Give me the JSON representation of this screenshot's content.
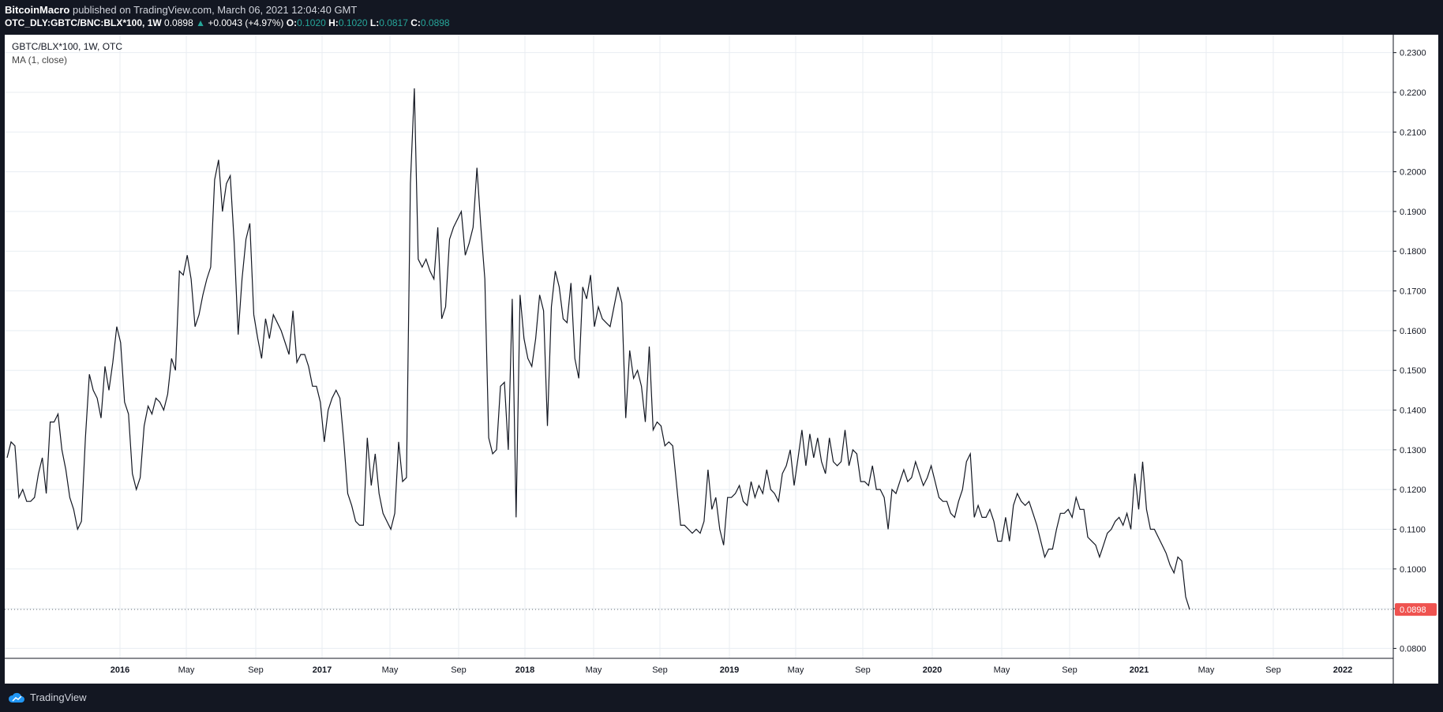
{
  "header": {
    "author": "BitcoinMacro",
    "published": "published on TradingView.com, March 06, 2021 12:04:40 GMT",
    "symbol": "OTC_DLY:GBTC/BNC:BLX*100, 1W",
    "last": "0.0898",
    "change": "+0.0043 (+4.97%)",
    "o_label": "O:",
    "o": "0.1020",
    "h_label": "H:",
    "h": "0.1020",
    "l_label": "L:",
    "l": "0.0817",
    "c_label": "C:",
    "c": "0.0898",
    "up_color": "#26a69a"
  },
  "legend": {
    "title": "GBTC/BLX*100, 1W, OTC",
    "indicator": "MA (1, close)"
  },
  "footer": {
    "brand": "TradingView"
  },
  "chart_data": {
    "type": "line",
    "title": "GBTC/BLX*100, 1W, OTC",
    "xlabel": "",
    "ylabel": "",
    "ylim": [
      0.0775,
      0.2345
    ],
    "x_ticks": [
      "2016",
      "May",
      "Sep",
      "2017",
      "May",
      "Sep",
      "2018",
      "May",
      "Sep",
      "2019",
      "May",
      "Sep",
      "2020",
      "May",
      "Sep",
      "2021",
      "May",
      "Sep",
      "2022"
    ],
    "y_ticks": [
      "0.0800",
      "0.0900",
      "0.1000",
      "0.1100",
      "0.1200",
      "0.1300",
      "0.1400",
      "0.1500",
      "0.1600",
      "0.1700",
      "0.1800",
      "0.1900",
      "0.2000",
      "0.2100",
      "0.2200",
      "0.2300"
    ],
    "last_value_label": "0.0898",
    "line_color": "#131722",
    "last_badge_color": "#ef5350",
    "grid": true,
    "series": [
      {
        "values": [
          0.128,
          0.132,
          0.131,
          0.118,
          0.12,
          0.117,
          0.117,
          0.118,
          0.124,
          0.128,
          0.119,
          0.137,
          0.137,
          0.139,
          0.13,
          0.125,
          0.118,
          0.115,
          0.11,
          0.112,
          0.133,
          0.149,
          0.145,
          0.143,
          0.138,
          0.151,
          0.145,
          0.152,
          0.161,
          0.157,
          0.142,
          0.139,
          0.124,
          0.12,
          0.123,
          0.136,
          0.141,
          0.139,
          0.143,
          0.142,
          0.14,
          0.144,
          0.153,
          0.15,
          0.175,
          0.174,
          0.179,
          0.173,
          0.161,
          0.164,
          0.169,
          0.173,
          0.176,
          0.198,
          0.203,
          0.19,
          0.197,
          0.199,
          0.182,
          0.159,
          0.173,
          0.183,
          0.187,
          0.164,
          0.158,
          0.153,
          0.163,
          0.158,
          0.164,
          0.162,
          0.16,
          0.157,
          0.154,
          0.165,
          0.152,
          0.154,
          0.154,
          0.151,
          0.146,
          0.146,
          0.142,
          0.132,
          0.14,
          0.143,
          0.145,
          0.143,
          0.132,
          0.119,
          0.116,
          0.112,
          0.111,
          0.111,
          0.133,
          0.121,
          0.129,
          0.119,
          0.114,
          0.112,
          0.11,
          0.114,
          0.132,
          0.122,
          0.123,
          0.197,
          0.221,
          0.178,
          0.176,
          0.178,
          0.175,
          0.173,
          0.186,
          0.163,
          0.166,
          0.183,
          0.186,
          0.188,
          0.19,
          0.179,
          0.182,
          0.186,
          0.201,
          0.186,
          0.173,
          0.133,
          0.129,
          0.13,
          0.146,
          0.147,
          0.13,
          0.168,
          0.113,
          0.169,
          0.158,
          0.153,
          0.151,
          0.158,
          0.169,
          0.165,
          0.136,
          0.166,
          0.175,
          0.171,
          0.163,
          0.162,
          0.172,
          0.153,
          0.148,
          0.171,
          0.168,
          0.174,
          0.161,
          0.166,
          0.163,
          0.162,
          0.161,
          0.166,
          0.171,
          0.167,
          0.138,
          0.155,
          0.148,
          0.15,
          0.146,
          0.137,
          0.156,
          0.135,
          0.137,
          0.136,
          0.131,
          0.132,
          0.131,
          0.121,
          0.111,
          0.111,
          0.11,
          0.109,
          0.11,
          0.109,
          0.112,
          0.125,
          0.115,
          0.118,
          0.11,
          0.106,
          0.118,
          0.118,
          0.119,
          0.121,
          0.117,
          0.116,
          0.122,
          0.118,
          0.121,
          0.119,
          0.125,
          0.12,
          0.119,
          0.117,
          0.124,
          0.126,
          0.13,
          0.121,
          0.128,
          0.135,
          0.126,
          0.134,
          0.128,
          0.133,
          0.127,
          0.124,
          0.133,
          0.127,
          0.126,
          0.127,
          0.135,
          0.126,
          0.13,
          0.129,
          0.122,
          0.122,
          0.121,
          0.126,
          0.12,
          0.12,
          0.118,
          0.11,
          0.12,
          0.119,
          0.122,
          0.125,
          0.122,
          0.123,
          0.127,
          0.124,
          0.121,
          0.123,
          0.126,
          0.122,
          0.118,
          0.117,
          0.117,
          0.114,
          0.113,
          0.117,
          0.12,
          0.127,
          0.129,
          0.113,
          0.116,
          0.113,
          0.113,
          0.115,
          0.112,
          0.107,
          0.107,
          0.113,
          0.107,
          0.116,
          0.119,
          0.117,
          0.116,
          0.117,
          0.114,
          0.111,
          0.107,
          0.103,
          0.105,
          0.105,
          0.11,
          0.114,
          0.114,
          0.115,
          0.113,
          0.118,
          0.115,
          0.115,
          0.108,
          0.107,
          0.106,
          0.103,
          0.106,
          0.109,
          0.11,
          0.112,
          0.113,
          0.111,
          0.114,
          0.11,
          0.124,
          0.115,
          0.127,
          0.115,
          0.11,
          0.11,
          0.108,
          0.106,
          0.104,
          0.101,
          0.099,
          0.103,
          0.102,
          0.093,
          0.0898
        ]
      }
    ]
  }
}
